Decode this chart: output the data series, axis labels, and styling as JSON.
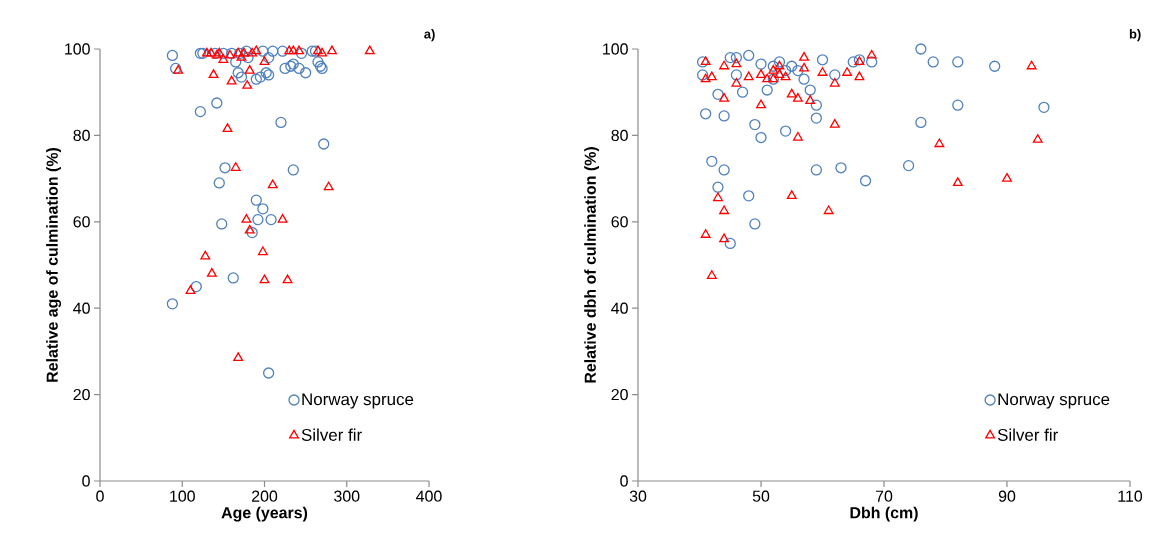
{
  "chart_data": [
    {
      "type": "scatter",
      "title": "a)",
      "xlabel": "Age (years)",
      "ylabel": "Relative age of culmination (%)",
      "xlim": [
        0,
        400
      ],
      "xticks": [
        0,
        100,
        200,
        300,
        400
      ],
      "ylim": [
        0,
        100
      ],
      "yticks": [
        0,
        20,
        40,
        60,
        80,
        100
      ],
      "grid": false,
      "legend": "bottom right",
      "series": [
        {
          "name": "Norway spruce",
          "color": "#4f81bd",
          "marker": "circle",
          "x": [
            88,
            92,
            122,
            125,
            122,
            142,
            145,
            148,
            152,
            162,
            165,
            168,
            172,
            178,
            185,
            190,
            190,
            192,
            195,
            198,
            202,
            205,
            208,
            205,
            220,
            222,
            225,
            232,
            235,
            235,
            242,
            250,
            258,
            262,
            265,
            268,
            270,
            272,
            88,
            117,
            140,
            150,
            160,
            170,
            180,
            198,
            205,
            210,
            245
          ],
          "values": [
            98.5,
            95.5,
            99,
            99,
            85.5,
            87.5,
            69,
            59.5,
            72.5,
            47,
            97,
            94.5,
            93.5,
            99.5,
            57.5,
            65,
            93,
            60.5,
            93.5,
            63,
            94.5,
            25,
            60.5,
            94,
            83,
            99.5,
            95.5,
            96,
            96.5,
            72,
            95.5,
            94.5,
            99.5,
            99.5,
            97,
            96,
            95.5,
            78,
            41,
            45,
            99,
            99,
            99,
            99,
            98,
            99.5,
            98,
            99.5,
            99
          ]
        },
        {
          "name": "Silver fir",
          "color": "#ff0000",
          "marker": "triangle",
          "x": [
            95,
            110,
            128,
            136,
            138,
            130,
            135,
            142,
            150,
            155,
            160,
            165,
            168,
            175,
            178,
            179,
            182,
            182,
            185,
            190,
            198,
            200,
            200,
            210,
            222,
            228,
            230,
            235,
            242,
            265,
            270,
            278,
            282,
            328,
            145,
            158,
            168,
            172
          ],
          "values": [
            95,
            44,
            52,
            48,
            94,
            99,
            99,
            98.5,
            97.5,
            81.5,
            92.5,
            72.5,
            28.5,
            99,
            60.5,
            91.5,
            58,
            95,
            99,
            99.5,
            53,
            46.5,
            97,
            68.5,
            60.5,
            46.5,
            99.5,
            99.5,
            99.5,
            99.5,
            99,
            68,
            99.5,
            99.5,
            99,
            98.5,
            99,
            98
          ]
        }
      ]
    },
    {
      "type": "scatter",
      "title": "b)",
      "xlabel": "Dbh (cm)",
      "ylabel": "Relative dbh of culmination (%)",
      "xlim": [
        30,
        110
      ],
      "xticks": [
        30,
        50,
        70,
        90,
        110
      ],
      "ylim": [
        0,
        100
      ],
      "yticks": [
        0,
        20,
        40,
        60,
        80,
        100
      ],
      "grid": false,
      "legend": "bottom right",
      "series": [
        {
          "name": "Norway spruce",
          "color": "#4f81bd",
          "marker": "circle",
          "x": [
            40.5,
            40.5,
            41,
            42,
            43,
            43,
            44,
            44,
            45,
            45,
            46,
            46,
            47,
            48,
            48,
            49,
            49,
            50,
            50,
            51,
            52,
            53,
            54,
            54,
            55,
            57,
            58,
            59,
            59,
            59,
            60,
            62,
            63,
            65,
            66,
            67,
            68,
            74,
            76,
            76,
            78,
            82,
            82,
            88,
            96,
            52,
            56
          ],
          "values": [
            97,
            94,
            85,
            74,
            68,
            89.5,
            84.5,
            72,
            98,
            55,
            98,
            94,
            90,
            98.5,
            66,
            82.5,
            59.5,
            79.5,
            96.5,
            90.5,
            96,
            97,
            95,
            81,
            96,
            93,
            90.5,
            87,
            84,
            72,
            97.5,
            94,
            72.5,
            97,
            97.5,
            69.5,
            97,
            73,
            100,
            83,
            97,
            97,
            87,
            96,
            86.5,
            93,
            95
          ]
        },
        {
          "name": "Silver fir",
          "color": "#ff0000",
          "marker": "triangle",
          "x": [
            41,
            41,
            42,
            42,
            43,
            44,
            44,
            44,
            44,
            46,
            46,
            48,
            50,
            50,
            51,
            52,
            53,
            54,
            55,
            55,
            56,
            57,
            56,
            58,
            57,
            60,
            61,
            62,
            62,
            64,
            66,
            66,
            68,
            79,
            82,
            90,
            94,
            95,
            41,
            53,
            52
          ],
          "values": [
            97,
            93,
            93.5,
            47.5,
            65.5,
            56,
            62.5,
            88.5,
            96,
            96.5,
            92,
            93.5,
            87,
            94,
            93,
            95,
            94,
            93.5,
            89.5,
            66,
            79.5,
            98,
            88.5,
            88,
            95.5,
            94.5,
            62.5,
            92,
            82.5,
            94.5,
            93.5,
            97,
            98.5,
            78,
            69,
            70,
            96,
            79,
            57,
            96,
            93
          ]
        }
      ]
    }
  ]
}
